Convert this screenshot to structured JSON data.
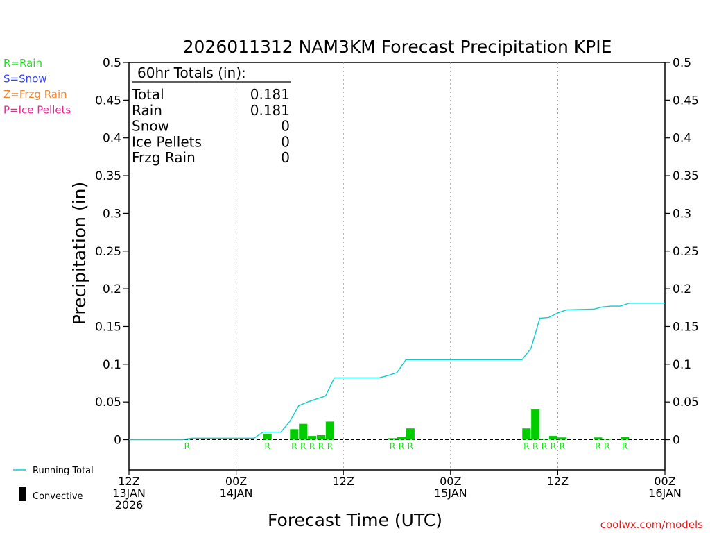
{
  "chart_data": {
    "type": "bar",
    "title": "2026011312 NAM3KM Forecast Precipitation KPIE",
    "xlabel": "Forecast Time (UTC)",
    "ylabel": "Precipitation (in)",
    "ylim": [
      -0.04,
      0.5
    ],
    "xlim_hours": [
      0,
      60
    ],
    "y_ticks": [
      {
        "v": 0.5,
        "label": "0.5"
      },
      {
        "v": 0.45,
        "label": "0.45"
      },
      {
        "v": 0.4,
        "label": "0.4"
      },
      {
        "v": 0.35,
        "label": "0.35"
      },
      {
        "v": 0.3,
        "label": "0.3"
      },
      {
        "v": 0.25,
        "label": "0.25"
      },
      {
        "v": 0.2,
        "label": "0.2"
      },
      {
        "v": 0.15,
        "label": "0.15"
      },
      {
        "v": 0.1,
        "label": "0.1"
      },
      {
        "v": 0.05,
        "label": "0.05"
      },
      {
        "v": 0,
        "label": "0"
      }
    ],
    "x_ticks": [
      {
        "h": 0,
        "lines": [
          "12Z",
          "13JAN",
          "2026"
        ]
      },
      {
        "h": 12,
        "lines": [
          "00Z",
          "14JAN"
        ]
      },
      {
        "h": 24,
        "lines": [
          "12Z"
        ]
      },
      {
        "h": 36,
        "lines": [
          "00Z",
          "15JAN"
        ]
      },
      {
        "h": 48,
        "lines": [
          "12Z"
        ]
      },
      {
        "h": 60,
        "lines": [
          "00Z",
          "16JAN"
        ]
      }
    ],
    "grid_hours": [
      12,
      24,
      36,
      48
    ],
    "ptype_legend": [
      {
        "label": "R=Rain",
        "color": "#22dd22"
      },
      {
        "label": "S=Snow",
        "color": "#3344ee"
      },
      {
        "label": "Z=Frzg Rain",
        "color": "#ee8833"
      },
      {
        "label": "P=Ice Pellets",
        "color": "#ee2299"
      }
    ],
    "totals": {
      "header": "60hr Totals (in):",
      "rows": [
        {
          "label": "Total",
          "value": "0.181"
        },
        {
          "label": "Rain",
          "value": "0.181"
        },
        {
          "label": "Snow",
          "value": "0"
        },
        {
          "label": "Ice Pellets",
          "value": "0"
        },
        {
          "label": "Frzg Rain",
          "value": "0"
        }
      ]
    },
    "bars": [
      {
        "h": 7,
        "v": 0.001,
        "type": "R"
      },
      {
        "h": 16,
        "v": 0.008,
        "type": "R"
      },
      {
        "h": 19,
        "v": 0.014,
        "type": "R"
      },
      {
        "h": 20,
        "v": 0.021,
        "type": "R"
      },
      {
        "h": 21,
        "v": 0.005,
        "type": "R"
      },
      {
        "h": 22,
        "v": 0.006,
        "type": "R"
      },
      {
        "h": 23,
        "v": 0.024,
        "type": "R"
      },
      {
        "h": 30,
        "v": 0.002,
        "type": "R"
      },
      {
        "h": 31,
        "v": 0.004,
        "type": "R"
      },
      {
        "h": 32,
        "v": 0.015,
        "type": "R"
      },
      {
        "h": 45,
        "v": 0.015,
        "type": "R"
      },
      {
        "h": 46,
        "v": 0.04,
        "type": "R"
      },
      {
        "h": 47,
        "v": 0.001,
        "type": "R"
      },
      {
        "h": 48,
        "v": 0.005,
        "type": "R"
      },
      {
        "h": 49,
        "v": 0.003,
        "type": "R"
      },
      {
        "h": 53,
        "v": 0.003,
        "type": "R"
      },
      {
        "h": 54,
        "v": 0.001,
        "type": "R"
      },
      {
        "h": 56,
        "v": 0.004,
        "type": "R"
      }
    ],
    "running_total": {
      "hours": [
        0,
        6,
        7,
        14,
        15,
        17,
        18,
        19,
        20,
        22,
        23,
        24,
        28,
        29,
        30,
        31,
        32,
        33,
        36,
        44,
        45,
        46,
        47,
        48,
        49,
        52,
        53,
        54,
        55,
        56,
        57,
        60
      ],
      "values": [
        0,
        0,
        0.002,
        0.002,
        0.01,
        0.01,
        0.024,
        0.045,
        0.05,
        0.058,
        0.082,
        0.082,
        0.082,
        0.085,
        0.089,
        0.106,
        0.106,
        0.106,
        0.106,
        0.106,
        0.121,
        0.161,
        0.162,
        0.168,
        0.172,
        0.173,
        0.176,
        0.177,
        0.177,
        0.181,
        0.181,
        0.181
      ]
    },
    "series_legend": [
      {
        "label": "Running Total",
        "color": "#11cccc"
      },
      {
        "label": "Convective",
        "color": "#000000"
      }
    ],
    "bar_color": "#00cc00",
    "ptype_mark_color": "#22dd22"
  },
  "watermark": "coolwx.com/models"
}
